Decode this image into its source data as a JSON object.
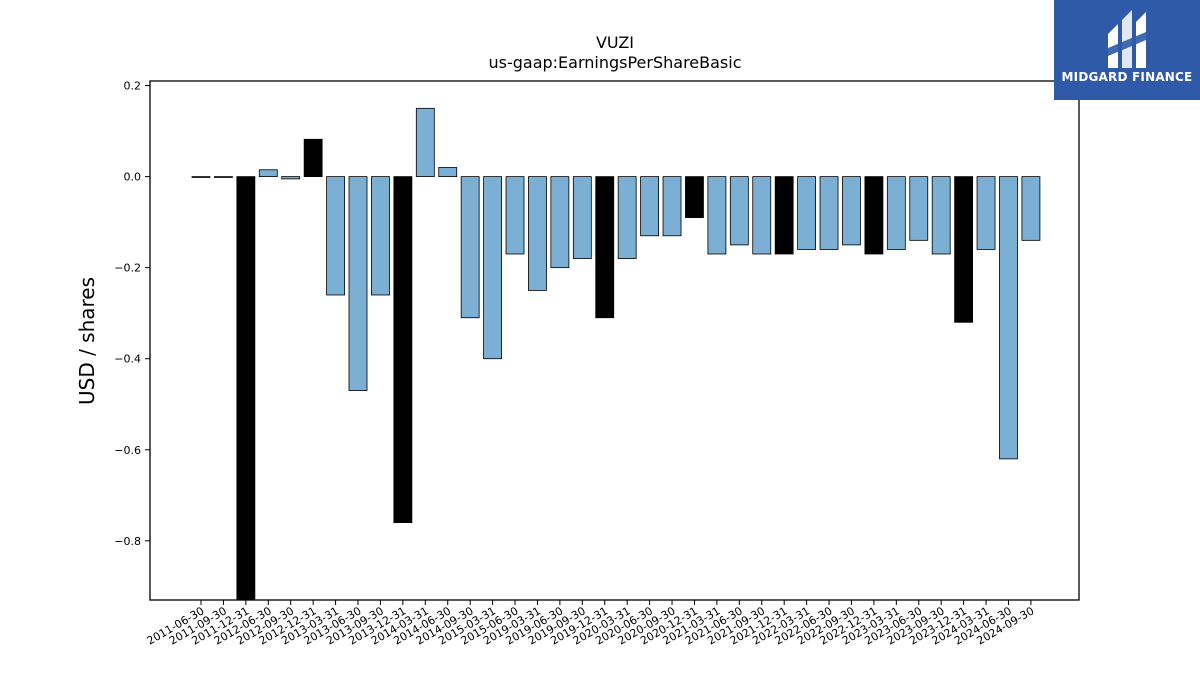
{
  "chart_data": {
    "type": "bar",
    "title": "VUZI",
    "subtitle": "us-gaap:EarningsPerShareBasic",
    "ylabel": "USD / shares",
    "xlabel": "",
    "ylim": [
      -0.93,
      0.21
    ],
    "yticks": [
      0.2,
      0.0,
      -0.2,
      -0.4,
      -0.6,
      -0.8
    ],
    "ytick_labels": [
      "0.2",
      "0.0",
      "−0.2",
      "−0.4",
      "−0.6",
      "−0.8"
    ],
    "grid": false,
    "categories": [
      "2011-06-30",
      "2011-09-30",
      "2011-12-31",
      "2012-06-30",
      "2012-09-30",
      "2012-12-31",
      "2013-03-31",
      "2013-06-30",
      "2013-09-30",
      "2013-12-31",
      "2014-03-31",
      "2014-06-30",
      "2014-09-30",
      "2015-03-31",
      "2015-06-30",
      "2019-03-31",
      "2019-06-30",
      "2019-09-30",
      "2019-12-31",
      "2020-03-31",
      "2020-06-30",
      "2020-09-30",
      "2020-12-31",
      "2021-03-31",
      "2021-06-30",
      "2021-09-30",
      "2021-12-31",
      "2022-03-31",
      "2022-06-30",
      "2022-09-30",
      "2022-12-31",
      "2023-03-31",
      "2023-06-30",
      "2023-09-30",
      "2023-12-31",
      "2024-03-31",
      "2024-06-30",
      "2024-09-30"
    ],
    "values": [
      -0.002,
      -0.002,
      -0.95,
      0.015,
      -0.005,
      0.082,
      -0.26,
      -0.47,
      -0.26,
      -0.76,
      0.15,
      0.02,
      -0.31,
      -0.4,
      -0.17,
      -0.25,
      -0.2,
      -0.18,
      -0.31,
      -0.18,
      -0.13,
      -0.13,
      -0.09,
      -0.17,
      -0.15,
      -0.17,
      -0.17,
      -0.16,
      -0.16,
      -0.15,
      -0.17,
      -0.16,
      -0.14,
      -0.17,
      -0.32,
      -0.16,
      -0.62,
      -0.14
    ],
    "highlight": [
      false,
      false,
      true,
      false,
      false,
      true,
      false,
      false,
      false,
      true,
      false,
      false,
      false,
      false,
      false,
      false,
      false,
      false,
      true,
      false,
      false,
      false,
      true,
      false,
      false,
      false,
      true,
      false,
      false,
      false,
      true,
      false,
      false,
      false,
      true,
      false,
      false,
      false
    ],
    "colors": {
      "bar": "#7bafd4",
      "highlight": "#000000",
      "edge": "#000000"
    }
  },
  "logo": {
    "text": "MIDGARD FINANCE",
    "background": "#2e5aa8"
  }
}
